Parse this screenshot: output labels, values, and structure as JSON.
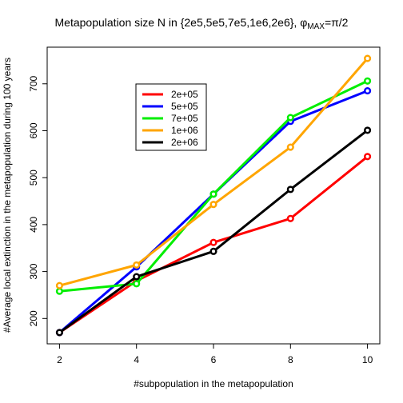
{
  "chart_data": {
    "type": "line",
    "title_main": "Metapopulation size N in {2e5,5e5,7e5,1e6,2e6}, ",
    "title_phi": "φ",
    "title_sub": "MAX",
    "title_tail": "=π/2",
    "xlabel": "#subpopulation in the metapopulation",
    "ylabel": "#Average local extinction in the metapopulation during 100 years",
    "x": [
      2,
      4,
      6,
      8,
      10
    ],
    "xticks": [
      2,
      4,
      6,
      8,
      10
    ],
    "yticks": [
      200,
      300,
      400,
      500,
      600,
      700
    ],
    "xlim": [
      1.68,
      10.32
    ],
    "ylim": [
      146,
      778
    ],
    "legend_position": "upper-left-inside",
    "series": [
      {
        "name": "2e+05",
        "color": "#ff0000",
        "values": [
          170,
          280,
          362,
          413,
          545
        ]
      },
      {
        "name": "5e+05",
        "color": "#0000ff",
        "values": [
          170,
          310,
          465,
          620,
          685
        ]
      },
      {
        "name": "7e+05",
        "color": "#00ee00",
        "values": [
          258,
          274,
          465,
          628,
          706
        ]
      },
      {
        "name": "1e+06",
        "color": "#ffa500",
        "values": [
          270,
          314,
          443,
          565,
          754
        ]
      },
      {
        "name": "2e+06",
        "color": "#000000",
        "values": [
          170,
          289,
          343,
          475,
          601
        ]
      }
    ]
  }
}
